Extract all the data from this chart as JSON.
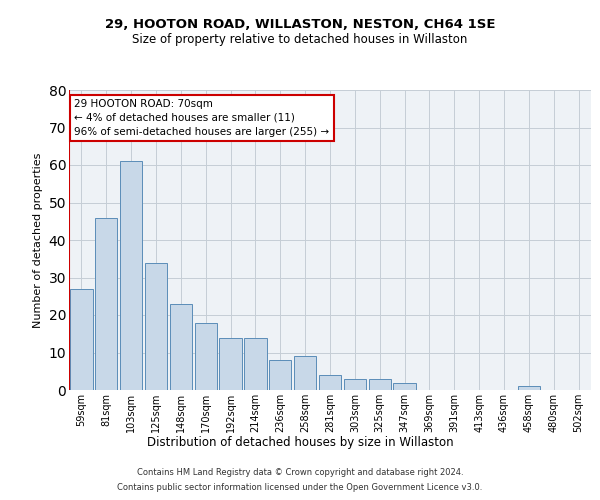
{
  "title1": "29, HOOTON ROAD, WILLASTON, NESTON, CH64 1SE",
  "title2": "Size of property relative to detached houses in Willaston",
  "xlabel": "Distribution of detached houses by size in Willaston",
  "ylabel": "Number of detached properties",
  "bar_values": [
    27,
    46,
    61,
    34,
    23,
    18,
    14,
    14,
    8,
    9,
    4,
    3,
    3,
    2,
    0,
    0,
    0,
    0,
    1,
    0,
    0
  ],
  "bar_labels": [
    "59sqm",
    "81sqm",
    "103sqm",
    "125sqm",
    "148sqm",
    "170sqm",
    "192sqm",
    "214sqm",
    "236sqm",
    "258sqm",
    "281sqm",
    "303sqm",
    "325sqm",
    "347sqm",
    "369sqm",
    "391sqm",
    "413sqm",
    "436sqm",
    "458sqm",
    "480sqm",
    "502sqm"
  ],
  "bar_color": "#c8d8e8",
  "bar_edge_color": "#5b8db8",
  "ylim": [
    0,
    80
  ],
  "yticks": [
    0,
    10,
    20,
    30,
    40,
    50,
    60,
    70,
    80
  ],
  "annotation_title": "29 HOOTON ROAD: 70sqm",
  "annotation_line1": "← 4% of detached houses are smaller (11)",
  "annotation_line2": "96% of semi-detached houses are larger (255) →",
  "annotation_box_color": "#ffffff",
  "annotation_box_edge": "#cc0000",
  "vline_color": "#cc0000",
  "footer1": "Contains HM Land Registry data © Crown copyright and database right 2024.",
  "footer2": "Contains public sector information licensed under the Open Government Licence v3.0.",
  "background_color": "#eef2f6",
  "grid_color": "#c5cdd5"
}
